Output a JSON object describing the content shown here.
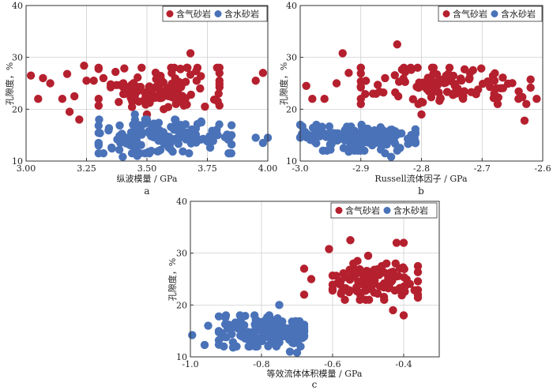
{
  "colors": {
    "gas": "#b5202e",
    "water": "#4a72b8"
  },
  "chart_data": [
    {
      "type": "scatter",
      "panel": "a",
      "xlabel": "纵波模量 / GPa",
      "ylabel": "孔隙度，%",
      "xlim": [
        3.0,
        4.0
      ],
      "ylim": [
        10,
        40
      ],
      "xticks": [
        "3.00",
        "3.25",
        "3.50",
        "3.75",
        "4.00"
      ],
      "xtick_values": [
        3.0,
        3.25,
        3.5,
        3.75,
        4.0
      ],
      "yticks": [
        "10",
        "20",
        "30",
        "40"
      ],
      "ytick_values": [
        10,
        20,
        30,
        40
      ],
      "legend": [
        "含气砂岩",
        "含水砂岩"
      ],
      "series": [
        {
          "name": "含气砂岩",
          "cluster": {
            "x": [
              3.3,
              3.8
            ],
            "y": [
              20,
              28
            ]
          },
          "points": [
            [
              3.02,
              26.5
            ],
            [
              3.05,
              22
            ],
            [
              3.07,
              26
            ],
            [
              3.1,
              25
            ],
            [
              3.15,
              22
            ],
            [
              3.17,
              26.8
            ],
            [
              3.18,
              19.5
            ],
            [
              3.2,
              22.5
            ],
            [
              3.22,
              18
            ],
            [
              3.24,
              28.4
            ],
            [
              3.25,
              25.5
            ],
            [
              3.28,
              25.5
            ],
            [
              3.3,
              22
            ],
            [
              3.32,
              26
            ],
            [
              3.35,
              24.8
            ],
            [
              3.37,
              27.2
            ],
            [
              3.45,
              22
            ],
            [
              3.5,
              19
            ],
            [
              3.6,
              28
            ],
            [
              3.62,
              21
            ],
            [
              3.68,
              30.8
            ],
            [
              3.72,
              24
            ],
            [
              3.74,
              20.5
            ],
            [
              3.8,
              25.5
            ],
            [
              3.95,
              25.5
            ],
            [
              3.98,
              27
            ]
          ]
        },
        {
          "name": "含水砂岩",
          "cluster": {
            "x": [
              3.3,
              3.85
            ],
            "y": [
              11.5,
              18
            ]
          },
          "points": [
            [
              3.3,
              13
            ],
            [
              3.32,
              11.5
            ],
            [
              3.4,
              10.8
            ],
            [
              3.46,
              11
            ],
            [
              3.45,
              19
            ],
            [
              3.5,
              18
            ],
            [
              3.85,
              15
            ],
            [
              3.95,
              14.5
            ],
            [
              3.98,
              13.5
            ],
            [
              4.0,
              14.5
            ]
          ]
        }
      ],
      "caption": "a"
    },
    {
      "type": "scatter",
      "panel": "b",
      "xlabel": "Russell流体因子 / GPa",
      "ylabel": "孔隙度，%",
      "xlim": [
        -3.0,
        -2.6
      ],
      "ylim": [
        10,
        40
      ],
      "xticks": [
        "-3.0",
        "-2.9",
        "-2.8",
        "-2.7",
        "-2.6"
      ],
      "xtick_values": [
        -3.0,
        -2.9,
        -2.8,
        -2.7,
        -2.6
      ],
      "yticks": [
        "10",
        "20",
        "30",
        "40"
      ],
      "ytick_values": [
        10,
        20,
        30,
        40
      ],
      "legend": [
        "含气砂岩",
        "含水砂岩"
      ],
      "series": [
        {
          "name": "含气砂岩",
          "cluster": {
            "x": [
              -2.9,
              -2.62
            ],
            "y": [
              21,
              28
            ]
          },
          "points": [
            [
              -2.99,
              24.5
            ],
            [
              -2.98,
              22
            ],
            [
              -2.96,
              22
            ],
            [
              -2.94,
              25
            ],
            [
              -2.93,
              30.8
            ],
            [
              -2.92,
              27
            ],
            [
              -2.9,
              22
            ],
            [
              -2.88,
              23
            ],
            [
              -2.86,
              26
            ],
            [
              -2.84,
              32.5
            ],
            [
              -2.8,
              19
            ],
            [
              -2.78,
              28
            ],
            [
              -2.72,
              27
            ],
            [
              -2.68,
              23
            ],
            [
              -2.64,
              22
            ],
            [
              -2.63,
              17.8
            ],
            [
              -2.61,
              22
            ]
          ]
        },
        {
          "name": "含水砂岩",
          "cluster": {
            "x": [
              -3.0,
              -2.81
            ],
            "y": [
              12,
              17
            ]
          },
          "points": [
            [
              -3.0,
              17
            ],
            [
              -2.95,
              12.2
            ],
            [
              -2.92,
              11.8
            ],
            [
              -2.86,
              11.5
            ],
            [
              -2.84,
              12
            ],
            [
              -2.85,
              10.8
            ],
            [
              -2.82,
              13.5
            ],
            [
              -2.81,
              15.5
            ]
          ]
        }
      ],
      "caption": "b"
    },
    {
      "type": "scatter",
      "panel": "c",
      "xlabel": "等效流体体积模量 / GPa",
      "ylabel": "孔隙度，%",
      "xlim": [
        -1.0,
        -0.3
      ],
      "ylim": [
        10,
        40
      ],
      "xticks": [
        "-1.0",
        "-0.8",
        "-0.6",
        "-0.4"
      ],
      "xtick_values": [
        -1.0,
        -0.8,
        -0.6,
        -0.4
      ],
      "yticks": [
        "10",
        "20",
        "30",
        "40"
      ],
      "ytick_values": [
        10,
        20,
        30,
        40
      ],
      "legend": [
        "含气砂岩",
        "含水砂岩"
      ],
      "series": [
        {
          "name": "含气砂岩",
          "cluster": {
            "x": [
              -0.6,
              -0.36
            ],
            "y": [
              21,
              28
            ]
          },
          "points": [
            [
              -0.68,
              22
            ],
            [
              -0.68,
              27
            ],
            [
              -0.66,
              25
            ],
            [
              -0.61,
              30.8
            ],
            [
              -0.55,
              32.5
            ],
            [
              -0.53,
              28.5
            ],
            [
              -0.5,
              29.5
            ],
            [
              -0.42,
              32
            ],
            [
              -0.4,
              32
            ],
            [
              -0.4,
              18
            ],
            [
              -0.43,
              19
            ],
            [
              -0.36,
              22
            ],
            [
              -0.36,
              27.5
            ]
          ]
        },
        {
          "name": "含水砂岩",
          "cluster": {
            "x": [
              -0.92,
              -0.68
            ],
            "y": [
              12,
              18
            ]
          },
          "points": [
            [
              -0.995,
              14.2
            ],
            [
              -0.96,
              12.3
            ],
            [
              -0.95,
              16
            ],
            [
              -0.9,
              18
            ],
            [
              -0.88,
              11.8
            ],
            [
              -0.75,
              20
            ],
            [
              -0.72,
              11
            ],
            [
              -0.7,
              10.8
            ],
            [
              -0.69,
              12
            ]
          ]
        }
      ],
      "caption": "c"
    }
  ]
}
